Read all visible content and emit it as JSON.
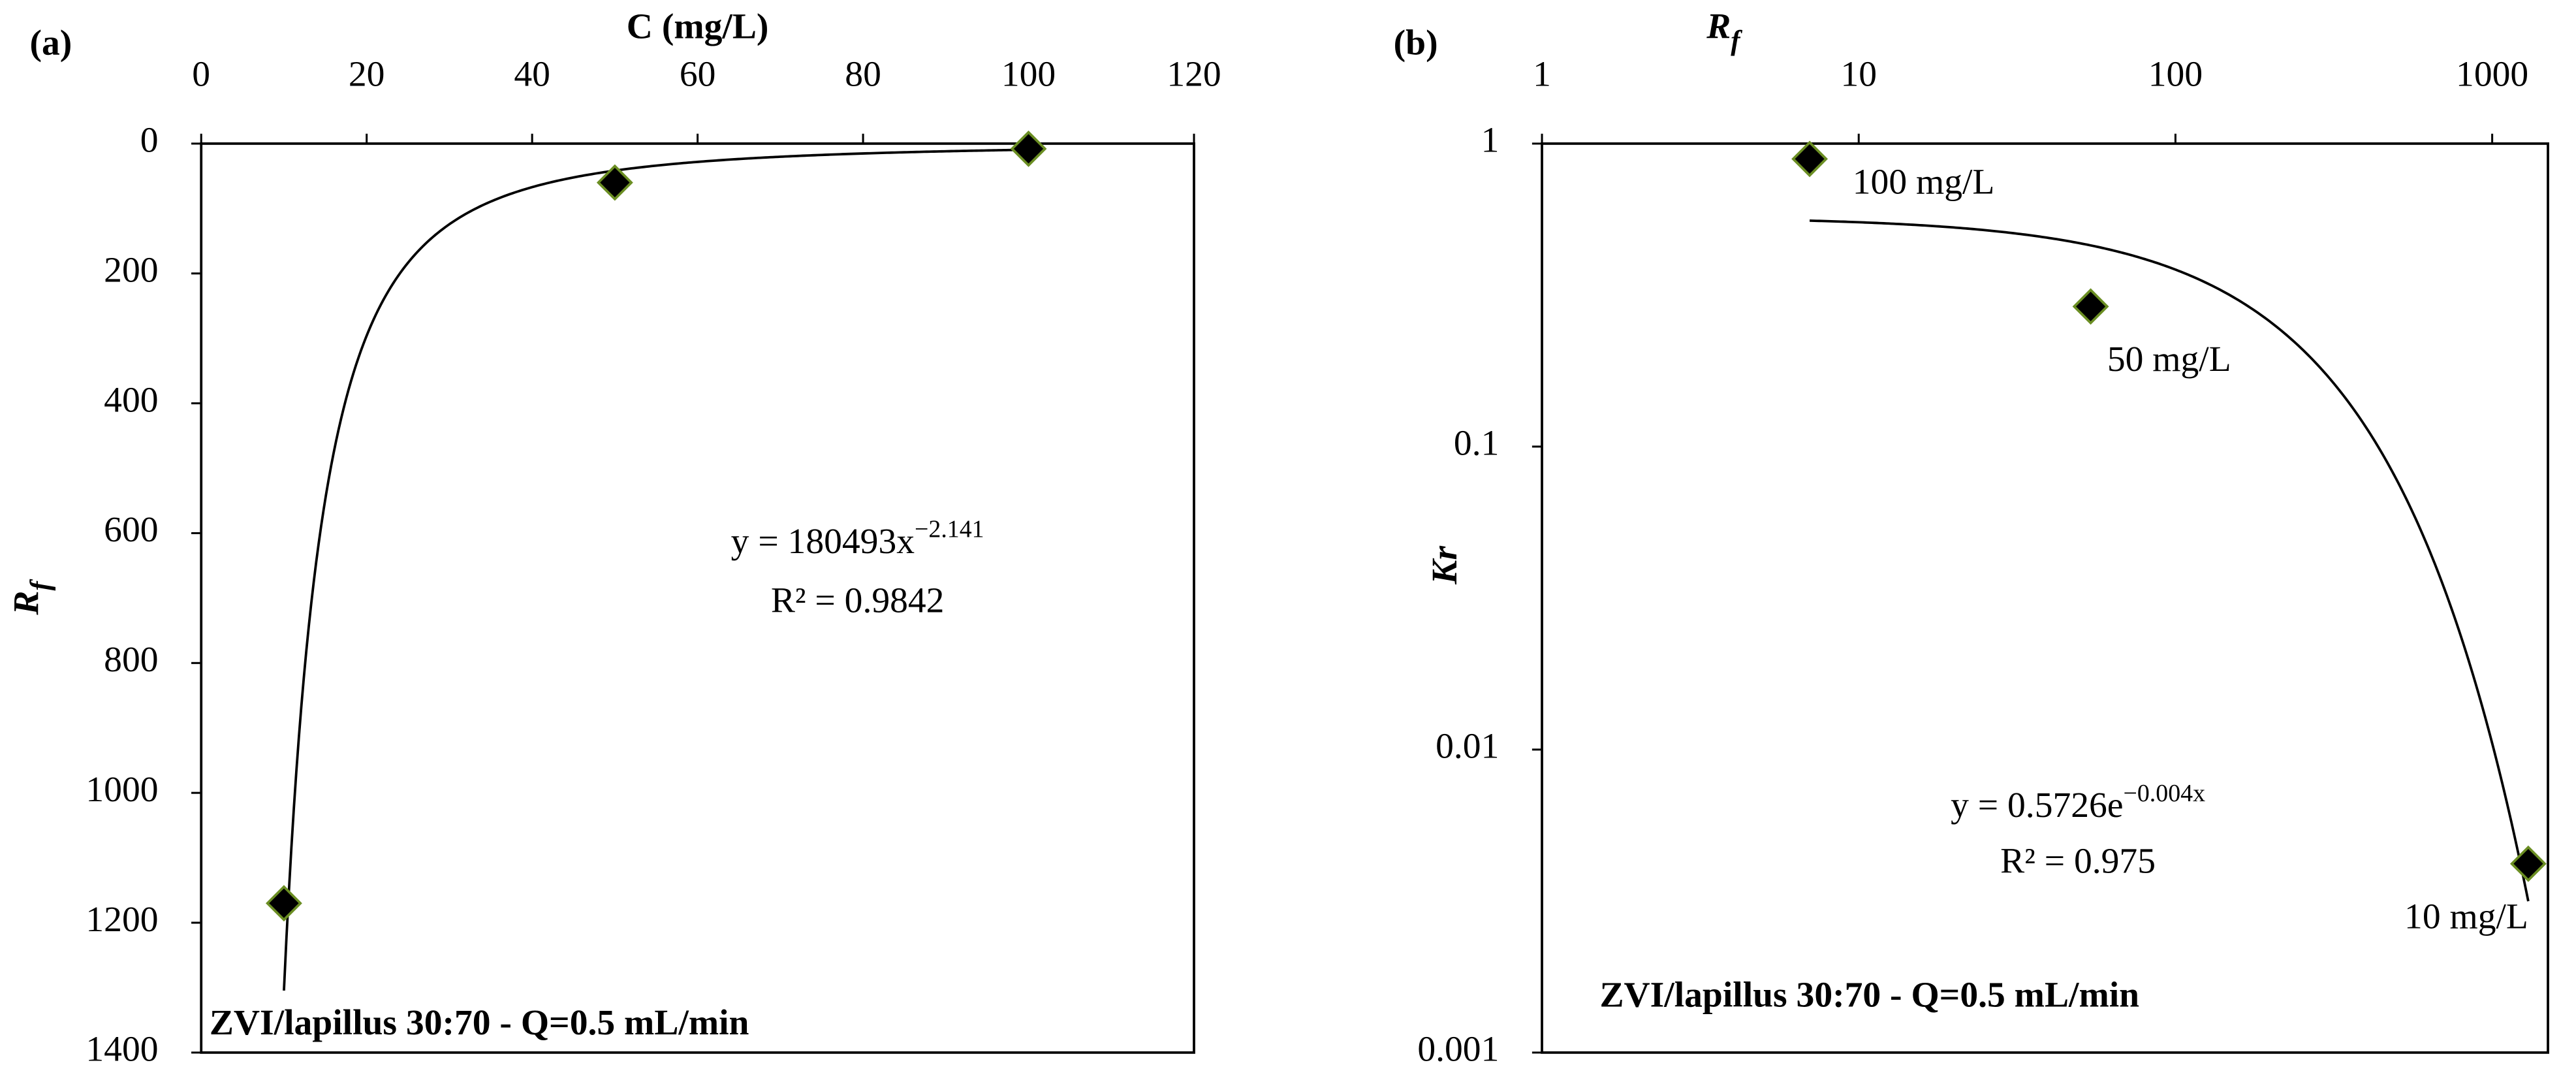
{
  "chart_data": [
    {
      "type": "scatter",
      "panel": "(a)",
      "x_label": "C (mg/L)",
      "y_label": "R",
      "y_label_sub": "f",
      "x": [
        10,
        50,
        100
      ],
      "values": [
        1170,
        60,
        8
      ],
      "color": "#000000",
      "edge_color": "#6b8e23",
      "xlim": [
        0,
        120
      ],
      "xticks": [
        0,
        20,
        40,
        60,
        80,
        100,
        120
      ],
      "ylim": [
        0,
        1400
      ],
      "yticks": [
        0,
        200,
        400,
        600,
        800,
        1000,
        1200,
        1400
      ],
      "y_inverted": true,
      "x_axis_position": "top",
      "trendline": {
        "type": "power",
        "a": 180493,
        "b": -2.141,
        "text": "y = 180493x",
        "text_sup": "−2.141",
        "r2_text": "R² = 0.9842"
      },
      "footer": "ZVI/lapillus 30:70 - Q=0.5 mL/min"
    },
    {
      "type": "scatter",
      "panel": "(b)",
      "x_label": "R",
      "x_label_sub": "f",
      "y_label": "Kr",
      "x": [
        7,
        54,
        1300
      ],
      "values": [
        0.89,
        0.29,
        0.0042
      ],
      "color": "#000000",
      "edge_color": "#6b8e23",
      "point_labels": [
        "100 mg/L",
        "50 mg/L",
        "10 mg/L"
      ],
      "xlim": [
        1,
        1500
      ],
      "xticks": [
        1,
        10,
        100,
        1000
      ],
      "x_log": true,
      "ylim": [
        0.001,
        1
      ],
      "yticks": [
        0.001,
        0.01,
        0.1,
        1
      ],
      "y_log": true,
      "x_axis_position": "top",
      "trendline": {
        "type": "exponential",
        "a": 0.5726,
        "b": -0.004,
        "text": "y = 0.5726e",
        "text_sup": "−0.004x",
        "r2_text": "R² = 0.975"
      },
      "footer": "ZVI/lapillus 30:70 - Q=0.5 mL/min"
    }
  ]
}
